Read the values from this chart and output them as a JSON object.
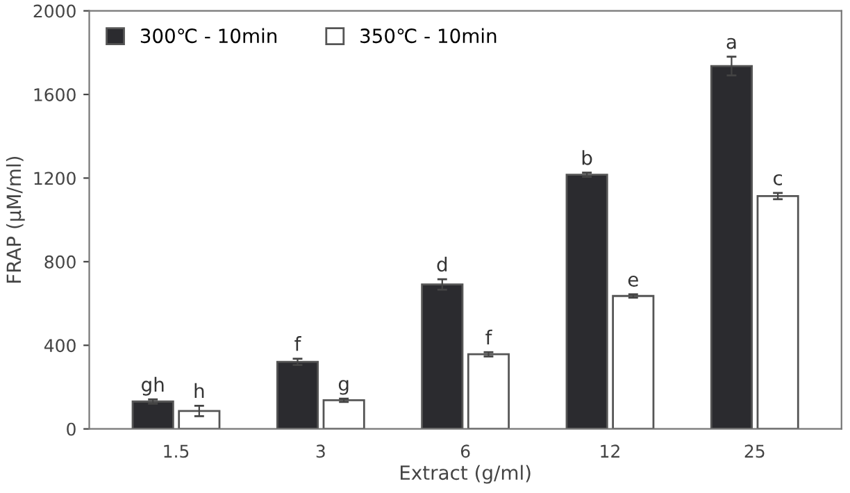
{
  "chart_data": {
    "type": "bar",
    "xlabel": "Extract (g/ml)",
    "ylabel": "FRAP (µM/ml)",
    "categories": [
      "1.5",
      "3",
      "6",
      "12",
      "25"
    ],
    "series": [
      {
        "name": "300℃ - 10min",
        "color": "#2b2b2f",
        "values": [
          131,
          321,
          691,
          1216,
          1736
        ],
        "errors": [
          10,
          15,
          25,
          10,
          45
        ]
      },
      {
        "name": "350℃ - 10min",
        "color": "#ffffff",
        "values": [
          86,
          137,
          357,
          636,
          1114
        ],
        "errors": [
          25,
          8,
          10,
          8,
          15
        ]
      }
    ],
    "ylim": [
      0,
      2000
    ],
    "yticks": [
      0,
      400,
      800,
      1200,
      1600,
      2000
    ],
    "grid": false,
    "legend": "top left",
    "annotations": [
      {
        "text": "gh",
        "x": "1.5",
        "y": 131
      },
      {
        "text": "h",
        "x": "1.5",
        "y": 86
      },
      {
        "text": "f",
        "x": "3",
        "y": 321
      },
      {
        "text": "g",
        "x": "3",
        "y": 137
      },
      {
        "text": "d",
        "x": "6",
        "y": 691
      },
      {
        "text": "f",
        "x": "6",
        "y": 357
      },
      {
        "text": "b",
        "x": "12",
        "y": 1216
      },
      {
        "text": "e",
        "x": "12",
        "y": 636
      },
      {
        "text": "a",
        "x": "25",
        "y": 1736
      },
      {
        "text": "c",
        "x": "25",
        "y": 1114
      }
    ]
  }
}
